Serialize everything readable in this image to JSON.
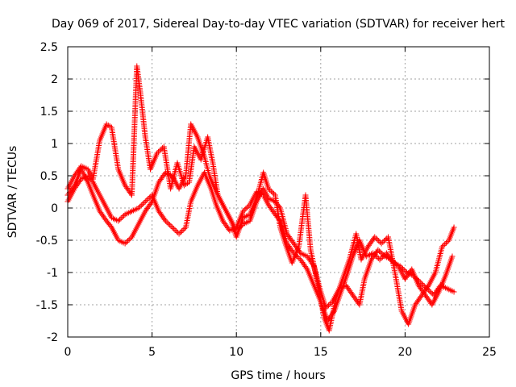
{
  "chart_data": {
    "type": "scatter",
    "title": "Day 069 of 2017, Sidereal Day-to-day VTEC variation (SDTVAR) for receiver hert",
    "xlabel": "GPS time / hours",
    "ylabel": "SDTVAR / TECUs",
    "xlim": [
      0,
      25
    ],
    "ylim": [
      -2,
      2.5
    ],
    "xticks": [
      "0",
      "5",
      "10",
      "15",
      "20",
      "25"
    ],
    "yticks": [
      "2.5",
      "2",
      "1.5",
      "1",
      "0.5",
      "0",
      "-0.5",
      "-1",
      "-1.5",
      "-2"
    ],
    "grid": true,
    "marker": "plus",
    "color": "#ff0000",
    "series": [
      {
        "points": [
          [
            0.0,
            0.3
          ],
          [
            0.4,
            0.5
          ],
          [
            0.8,
            0.65
          ],
          [
            1.2,
            0.6
          ],
          [
            1.5,
            0.45
          ],
          [
            1.9,
            1.05
          ],
          [
            2.3,
            1.3
          ],
          [
            2.6,
            1.25
          ],
          [
            3.0,
            0.6
          ],
          [
            3.4,
            0.35
          ],
          [
            3.8,
            0.2
          ],
          [
            4.1,
            2.2
          ],
          [
            4.3,
            1.8
          ],
          [
            4.6,
            1.1
          ],
          [
            4.9,
            0.6
          ],
          [
            5.3,
            0.85
          ],
          [
            5.7,
            0.95
          ],
          [
            6.1,
            0.3
          ],
          [
            6.5,
            0.7
          ],
          [
            6.9,
            0.35
          ],
          [
            7.2,
            0.4
          ],
          [
            7.5,
            0.95
          ],
          [
            7.9,
            0.75
          ],
          [
            8.3,
            1.1
          ],
          [
            8.6,
            0.7
          ],
          [
            8.9,
            0.2
          ],
          [
            9.3,
            0.0
          ],
          [
            9.7,
            -0.2
          ],
          [
            10.0,
            -0.45
          ],
          [
            10.4,
            -0.15
          ],
          [
            10.8,
            -0.1
          ],
          [
            11.2,
            0.15
          ],
          [
            11.6,
            0.55
          ],
          [
            11.9,
            0.3
          ],
          [
            12.3,
            0.2
          ],
          [
            12.6,
            -0.3
          ],
          [
            12.9,
            -0.55
          ],
          [
            13.3,
            -0.85
          ],
          [
            13.7,
            -0.6
          ],
          [
            14.1,
            0.2
          ],
          [
            14.4,
            -0.65
          ],
          [
            14.8,
            -1.15
          ],
          [
            15.2,
            -1.7
          ],
          [
            15.5,
            -1.9
          ],
          [
            15.9,
            -1.4
          ],
          [
            16.3,
            -1.1
          ],
          [
            16.7,
            -0.8
          ],
          [
            17.1,
            -0.4
          ],
          [
            17.4,
            -0.8
          ],
          [
            17.8,
            -0.6
          ],
          [
            18.2,
            -0.45
          ],
          [
            18.6,
            -0.55
          ],
          [
            19.0,
            -0.45
          ],
          [
            19.4,
            -1.0
          ],
          [
            19.8,
            -1.6
          ],
          [
            20.2,
            -1.8
          ],
          [
            20.6,
            -1.5
          ],
          [
            21.0,
            -1.35
          ],
          [
            21.4,
            -1.2
          ],
          [
            21.8,
            -1.0
          ],
          [
            22.2,
            -0.6
          ],
          [
            22.6,
            -0.5
          ],
          [
            22.9,
            -0.3
          ]
        ]
      },
      {
        "points": [
          [
            0.0,
            0.1
          ],
          [
            0.4,
            0.3
          ],
          [
            0.8,
            0.45
          ],
          [
            1.2,
            0.5
          ],
          [
            1.5,
            0.4
          ],
          [
            1.9,
            0.2
          ],
          [
            2.3,
            0.0
          ],
          [
            2.6,
            -0.15
          ],
          [
            3.0,
            -0.2
          ],
          [
            3.4,
            -0.1
          ],
          [
            3.8,
            -0.05
          ],
          [
            4.2,
            0.0
          ],
          [
            4.6,
            0.1
          ],
          [
            5.0,
            0.2
          ],
          [
            5.4,
            -0.05
          ],
          [
            5.8,
            -0.2
          ],
          [
            6.2,
            -0.3
          ],
          [
            6.6,
            -0.4
          ],
          [
            7.0,
            -0.3
          ],
          [
            7.3,
            0.1
          ],
          [
            7.7,
            0.35
          ],
          [
            8.1,
            0.55
          ],
          [
            8.5,
            0.3
          ],
          [
            8.8,
            0.05
          ],
          [
            9.2,
            -0.2
          ],
          [
            9.6,
            -0.35
          ],
          [
            10.0,
            -0.3
          ],
          [
            10.4,
            -0.05
          ],
          [
            10.8,
            0.05
          ],
          [
            11.2,
            0.25
          ],
          [
            11.6,
            0.2
          ],
          [
            11.9,
            0.05
          ],
          [
            12.3,
            -0.1
          ],
          [
            12.6,
            -0.2
          ],
          [
            13.0,
            -0.55
          ],
          [
            13.4,
            -0.7
          ],
          [
            13.8,
            -0.8
          ],
          [
            14.2,
            -0.95
          ],
          [
            14.6,
            -1.2
          ],
          [
            15.0,
            -1.45
          ],
          [
            15.4,
            -1.75
          ],
          [
            15.8,
            -1.6
          ],
          [
            16.2,
            -1.3
          ],
          [
            16.6,
            -1.0
          ],
          [
            16.9,
            -0.75
          ],
          [
            17.3,
            -0.5
          ],
          [
            17.7,
            -0.75
          ],
          [
            18.1,
            -0.7
          ],
          [
            18.5,
            -0.8
          ],
          [
            18.9,
            -0.7
          ],
          [
            19.3,
            -0.85
          ],
          [
            19.7,
            -0.9
          ],
          [
            20.1,
            -1.0
          ],
          [
            20.5,
            -1.05
          ],
          [
            20.9,
            -1.15
          ],
          [
            21.3,
            -1.25
          ],
          [
            21.7,
            -1.35
          ],
          [
            22.1,
            -1.2
          ],
          [
            22.5,
            -1.25
          ],
          [
            22.9,
            -1.3
          ]
        ]
      },
      {
        "points": [
          [
            0.0,
            0.2
          ],
          [
            0.4,
            0.35
          ],
          [
            0.8,
            0.6
          ],
          [
            1.2,
            0.4
          ],
          [
            1.5,
            0.2
          ],
          [
            1.9,
            -0.05
          ],
          [
            2.3,
            -0.2
          ],
          [
            2.6,
            -0.3
          ],
          [
            3.0,
            -0.5
          ],
          [
            3.4,
            -0.55
          ],
          [
            3.8,
            -0.45
          ],
          [
            4.2,
            -0.25
          ],
          [
            4.6,
            -0.05
          ],
          [
            5.0,
            0.1
          ],
          [
            5.4,
            0.4
          ],
          [
            5.8,
            0.55
          ],
          [
            6.2,
            0.5
          ],
          [
            6.6,
            0.3
          ],
          [
            7.0,
            0.5
          ],
          [
            7.3,
            1.3
          ],
          [
            7.7,
            1.1
          ],
          [
            8.1,
            0.8
          ],
          [
            8.4,
            0.5
          ],
          [
            8.8,
            0.25
          ],
          [
            9.2,
            0.05
          ],
          [
            9.6,
            -0.15
          ],
          [
            10.0,
            -0.35
          ],
          [
            10.4,
            -0.25
          ],
          [
            10.8,
            -0.2
          ],
          [
            11.2,
            0.1
          ],
          [
            11.6,
            0.3
          ],
          [
            11.9,
            0.15
          ],
          [
            12.3,
            0.1
          ],
          [
            12.6,
            0.0
          ],
          [
            13.0,
            -0.4
          ],
          [
            13.4,
            -0.55
          ],
          [
            13.8,
            -0.7
          ],
          [
            14.2,
            -0.75
          ],
          [
            14.6,
            -0.9
          ],
          [
            15.0,
            -1.3
          ],
          [
            15.3,
            -1.55
          ],
          [
            15.7,
            -1.45
          ],
          [
            16.1,
            -1.25
          ],
          [
            16.5,
            -1.2
          ],
          [
            16.9,
            -1.35
          ],
          [
            17.3,
            -1.5
          ],
          [
            17.6,
            -1.1
          ],
          [
            18.0,
            -0.8
          ],
          [
            18.4,
            -0.65
          ],
          [
            18.8,
            -0.75
          ],
          [
            19.2,
            -0.8
          ],
          [
            19.6,
            -0.9
          ],
          [
            20.0,
            -1.1
          ],
          [
            20.4,
            -0.95
          ],
          [
            20.8,
            -1.2
          ],
          [
            21.2,
            -1.35
          ],
          [
            21.6,
            -1.5
          ],
          [
            22.0,
            -1.3
          ],
          [
            22.4,
            -1.05
          ],
          [
            22.8,
            -0.75
          ]
        ]
      }
    ]
  }
}
